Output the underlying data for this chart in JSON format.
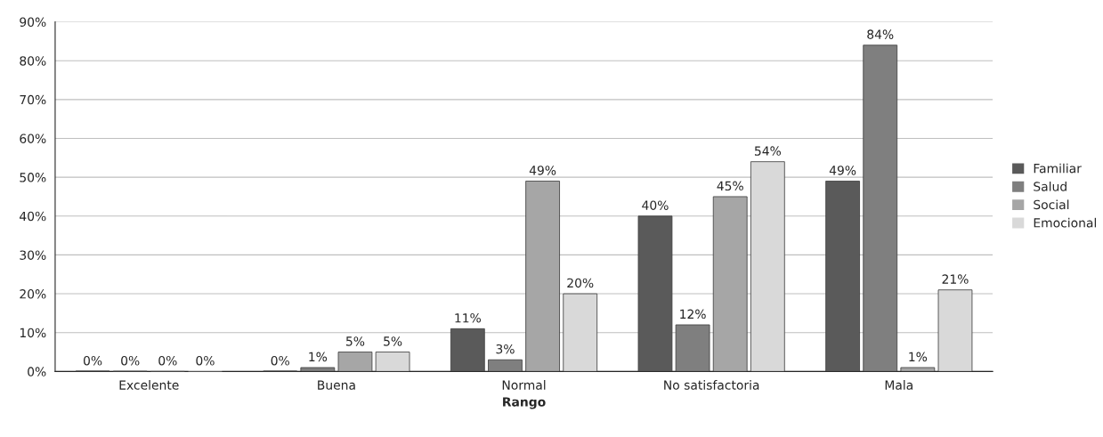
{
  "chart_data": {
    "type": "bar",
    "xlabel": "Rango",
    "categories": [
      "Excelente",
      "Buena",
      "Normal",
      "No satisfactoria",
      "Mala"
    ],
    "series": [
      {
        "name": "Familiar",
        "color": "#5a5a5a",
        "values": [
          0,
          0,
          11,
          40,
          49
        ],
        "value_labels": [
          "0%",
          "0%",
          "11%",
          "40%",
          "49%"
        ]
      },
      {
        "name": "Salud",
        "color": "#7f7f7f",
        "values": [
          0,
          1,
          3,
          12,
          84
        ],
        "value_labels": [
          "0%",
          "1%",
          "3%",
          "12%",
          "84%"
        ]
      },
      {
        "name": "Social",
        "color": "#a6a6a6",
        "values": [
          0,
          5,
          49,
          45,
          1
        ],
        "value_labels": [
          "0%",
          "5%",
          "49%",
          "45%",
          "1%"
        ]
      },
      {
        "name": "Emocional",
        "color": "#d9d9d9",
        "values": [
          0,
          5,
          20,
          54,
          21
        ],
        "value_labels": [
          "0%",
          "5%",
          "20%",
          "54%",
          "21%"
        ]
      }
    ],
    "ylim": [
      0,
      90
    ],
    "yticks": [
      {
        "value": 0,
        "label": "0%"
      },
      {
        "value": 10,
        "label": "10%"
      },
      {
        "value": 20,
        "label": "20%"
      },
      {
        "value": 30,
        "label": "30%"
      },
      {
        "value": 40,
        "label": "40%"
      },
      {
        "value": 50,
        "label": "50%"
      },
      {
        "value": 60,
        "label": "60%"
      },
      {
        "value": 70,
        "label": "70%"
      },
      {
        "value": 80,
        "label": "80%"
      },
      {
        "value": 90,
        "label": "90%"
      }
    ],
    "grid": "y",
    "legend": "right"
  }
}
